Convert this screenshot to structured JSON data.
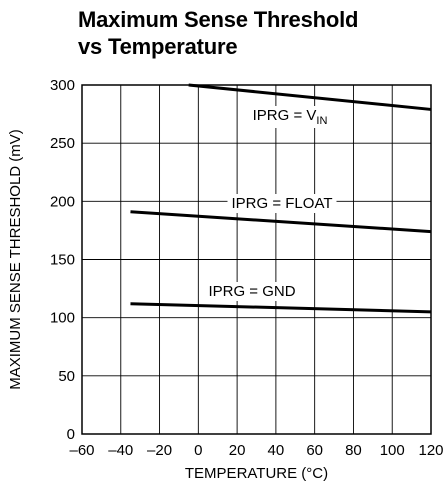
{
  "chart_data": {
    "type": "line",
    "title": [
      "Maximum Sense Threshold",
      "vs Temperature"
    ],
    "xlabel": "TEMPERATURE (°C)",
    "ylabel": "MAXIMUM SENSE THRESHOLD (mV)",
    "xlim": [
      -60,
      120
    ],
    "ylim": [
      0,
      300
    ],
    "xticks": [
      -60,
      -40,
      -20,
      0,
      20,
      40,
      60,
      80,
      100,
      120
    ],
    "yticks": [
      0,
      50,
      100,
      150,
      200,
      250,
      300
    ],
    "xtick_labels": [
      "–60",
      "–40",
      "–20",
      "0",
      "20",
      "40",
      "60",
      "80",
      "100",
      "120"
    ],
    "ytick_labels": [
      "0",
      "50",
      "100",
      "150",
      "200",
      "250",
      "300"
    ],
    "grid": true,
    "series": [
      {
        "name": "IPRG = VIN",
        "label_main": "IPRG = V",
        "label_sub": "IN",
        "x": [
          -5,
          120
        ],
        "y": [
          300,
          279
        ]
      },
      {
        "name": "IPRG = FLOAT",
        "label_main": "IPRG = FLOAT",
        "x": [
          -35,
          120
        ],
        "y": [
          191,
          174
        ]
      },
      {
        "name": "IPRG = GND",
        "label_main": "IPRG = GND",
        "x": [
          -35,
          120
        ],
        "y": [
          112,
          105
        ]
      }
    ]
  }
}
